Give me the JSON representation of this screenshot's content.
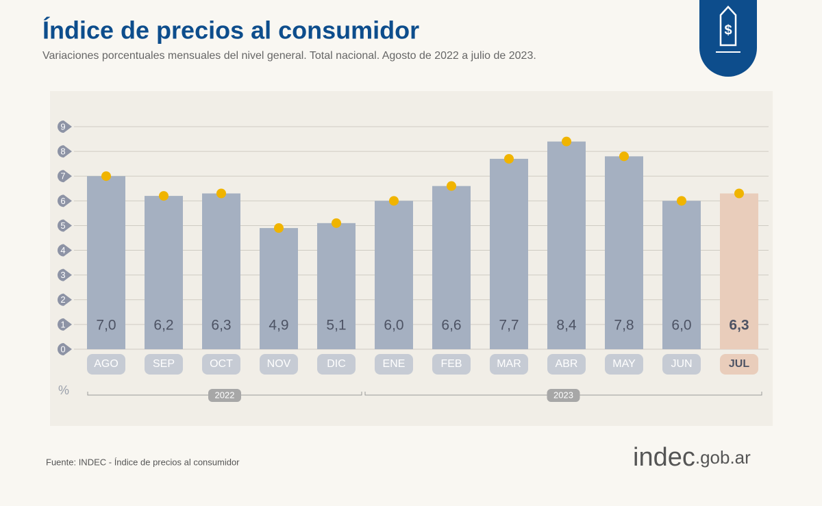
{
  "chart_data": {
    "type": "bar",
    "title": "Índice de precios al consumidor",
    "subtitle": "Variaciones porcentuales mensuales del nivel general. Total nacional. Agosto de 2022 a julio de 2023.",
    "unit_label": "%",
    "categories": [
      "AGO",
      "SEP",
      "OCT",
      "NOV",
      "DIC",
      "ENE",
      "FEB",
      "MAR",
      "ABR",
      "MAY",
      "JUN",
      "JUL"
    ],
    "values": [
      7.0,
      6.2,
      6.3,
      4.9,
      5.1,
      6.0,
      6.6,
      7.7,
      8.4,
      7.8,
      6.0,
      6.3
    ],
    "value_labels": [
      "7,0",
      "6,2",
      "6,3",
      "4,9",
      "5,1",
      "6,0",
      "6,6",
      "7,7",
      "8,4",
      "7,8",
      "6,0",
      "6,3"
    ],
    "colors": [
      "#a5b0c1",
      "#a5b0c1",
      "#a5b0c1",
      "#a5b0c1",
      "#a5b0c1",
      "#a5b0c1",
      "#a5b0c1",
      "#a5b0c1",
      "#a5b0c1",
      "#a5b0c1",
      "#a5b0c1",
      "#e9cdbb"
    ],
    "marker_color": "#f0b400",
    "x_groups": [
      "2022",
      "2023"
    ],
    "ylim": [
      0,
      9
    ],
    "yticks": [
      0,
      1,
      2,
      3,
      4,
      5,
      6,
      7,
      8,
      9
    ],
    "grid": true,
    "source": "Fuente: INDEC - Índice de precios al consumidor",
    "logo": {
      "main": "indec",
      "suffix": ".gob.ar"
    }
  }
}
